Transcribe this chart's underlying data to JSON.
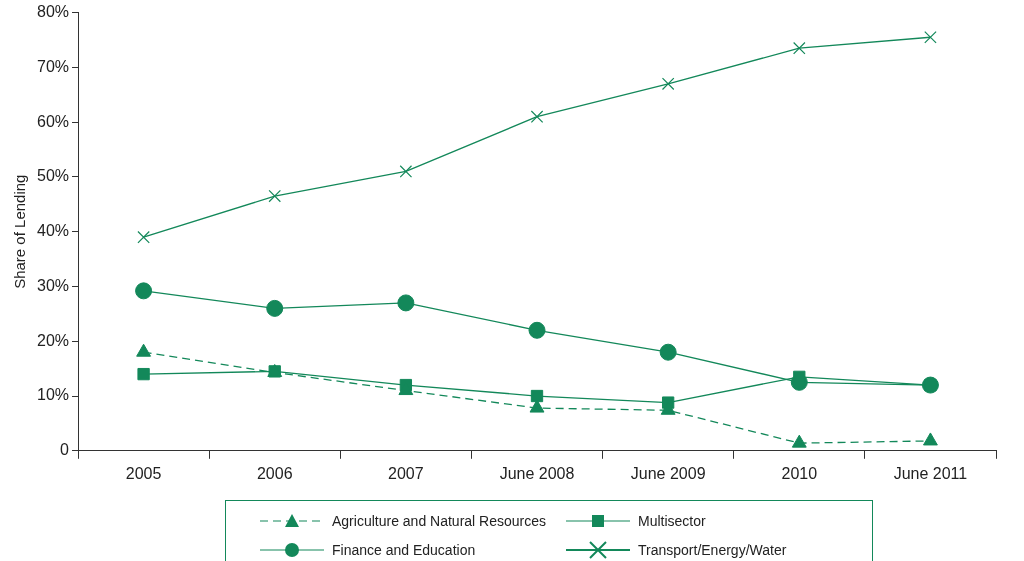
{
  "chart_data": {
    "type": "line",
    "ylabel": "Share of Lending",
    "categories": [
      "2005",
      "2006",
      "2007",
      "June 2008",
      "June 2009",
      "2010",
      "June 2011"
    ],
    "series": [
      {
        "name": "Agriculture and Natural Resources",
        "color": "#13885a",
        "marker": "triangle",
        "line_style": "dashed",
        "values": [
          18,
          14.3,
          11,
          7.8,
          7.4,
          1.4,
          1.8
        ]
      },
      {
        "name": "Multisector",
        "color": "#13885a",
        "marker": "square",
        "line_style": "solid",
        "values": [
          14,
          14.5,
          12,
          10,
          8.8,
          13.5,
          12
        ]
      },
      {
        "name": "Finance and Education",
        "color": "#13885a",
        "marker": "circle",
        "line_style": "solid",
        "values": [
          29.2,
          26,
          27,
          22,
          18,
          12.5,
          12
        ]
      },
      {
        "name": "Transport/Energy/Water",
        "color": "#13885a",
        "marker": "cross",
        "line_style": "solid",
        "values": [
          39,
          46.5,
          51,
          61,
          67,
          73.5,
          75.5
        ]
      }
    ],
    "ylim": [
      0,
      80
    ],
    "yticks": [
      {
        "value": 0,
        "label": "0"
      },
      {
        "value": 10,
        "label": "10%"
      },
      {
        "value": 20,
        "label": "20%"
      },
      {
        "value": 30,
        "label": "30%"
      },
      {
        "value": 40,
        "label": "40%"
      },
      {
        "value": 50,
        "label": "50%"
      },
      {
        "value": 60,
        "label": "60%"
      },
      {
        "value": 70,
        "label": "70%"
      },
      {
        "value": 80,
        "label": "80%"
      }
    ],
    "grid": false,
    "legend": "bottom"
  }
}
